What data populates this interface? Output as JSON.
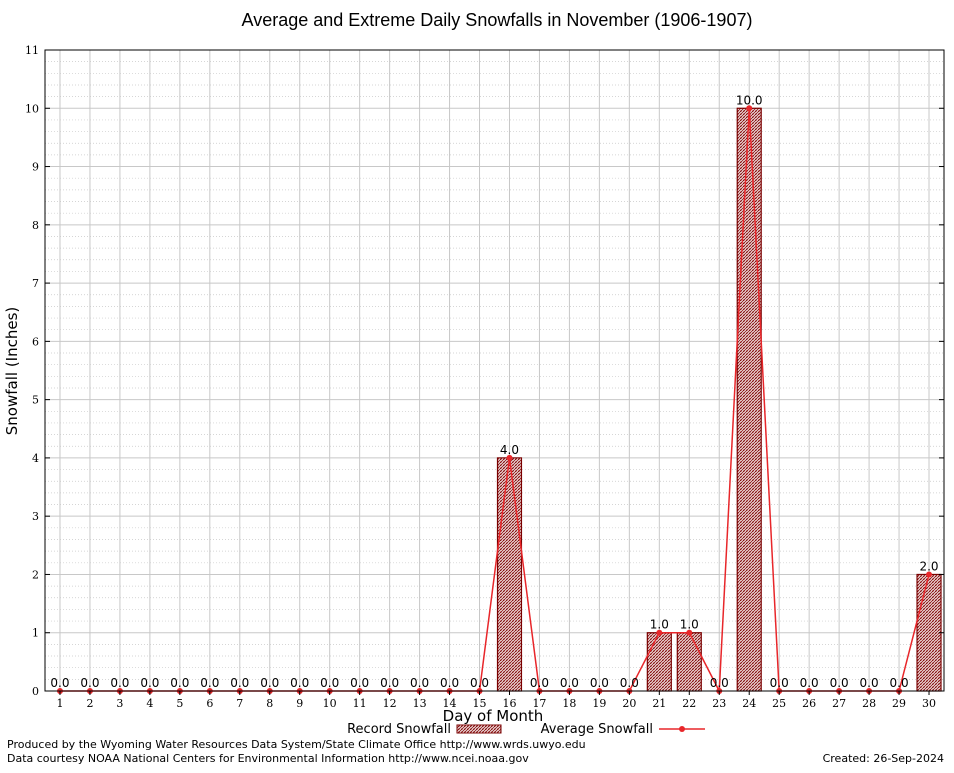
{
  "chart_data": {
    "type": "bar",
    "title": "Average and Extreme Daily Snowfalls in November (1906-1907)",
    "xlabel": "Day of Month",
    "ylabel": "Snowfall (Inches)",
    "ylim": [
      0,
      11
    ],
    "yticks": [
      "0",
      "1",
      "2",
      "3",
      "4",
      "5",
      "6",
      "7",
      "8",
      "9",
      "10",
      "11"
    ],
    "categories": [
      "1",
      "2",
      "3",
      "4",
      "5",
      "6",
      "7",
      "8",
      "9",
      "10",
      "11",
      "12",
      "13",
      "14",
      "15",
      "16",
      "17",
      "18",
      "19",
      "20",
      "21",
      "22",
      "23",
      "24",
      "25",
      "26",
      "27",
      "28",
      "29",
      "30"
    ],
    "series": [
      {
        "name": "Record Snowfall",
        "kind": "bar",
        "values": [
          0,
          0,
          0,
          0,
          0,
          0,
          0,
          0,
          0,
          0,
          0,
          0,
          0,
          0,
          0,
          4,
          0,
          0,
          0,
          0,
          1,
          1,
          0,
          10,
          0,
          0,
          0,
          0,
          0,
          2
        ]
      },
      {
        "name": "Average Snowfall",
        "kind": "line",
        "values": [
          0,
          0,
          0,
          0,
          0,
          0,
          0,
          0,
          0,
          0,
          0,
          0,
          0,
          0,
          0,
          4,
          0,
          0,
          0,
          0,
          1,
          1,
          0,
          10,
          0,
          0,
          0,
          0,
          0,
          2
        ]
      }
    ],
    "data_labels": [
      "0.0",
      "0.0",
      "0.0",
      "0.0",
      "0.0",
      "0.0",
      "0.0",
      "0.0",
      "0.0",
      "0.0",
      "0.0",
      "0.0",
      "0.0",
      "0.0",
      "0.0",
      "4.0",
      "0.0",
      "0.0",
      "0.0",
      "0.0",
      "1.0",
      "1.0",
      "0.0",
      "10.0",
      "0.0",
      "0.0",
      "0.0",
      "0.0",
      "0.0",
      "2.0"
    ],
    "grid": true,
    "legend_position": "bottom",
    "colors": {
      "bar_edge": "#7a0000",
      "bar_fill": "#b07070",
      "line": "#e8262a",
      "grid_major": "#c8c8c8",
      "grid_minor": "#c8c8c8"
    }
  },
  "footer": {
    "producer": "Produced by the Wyoming Water Resources Data System/State Climate Office http://www.wrds.uwyo.edu",
    "source": "Data courtesy NOAA National Centers for Environmental Information http://www.ncei.noaa.gov",
    "created": "Created:  26-Sep-2024"
  }
}
